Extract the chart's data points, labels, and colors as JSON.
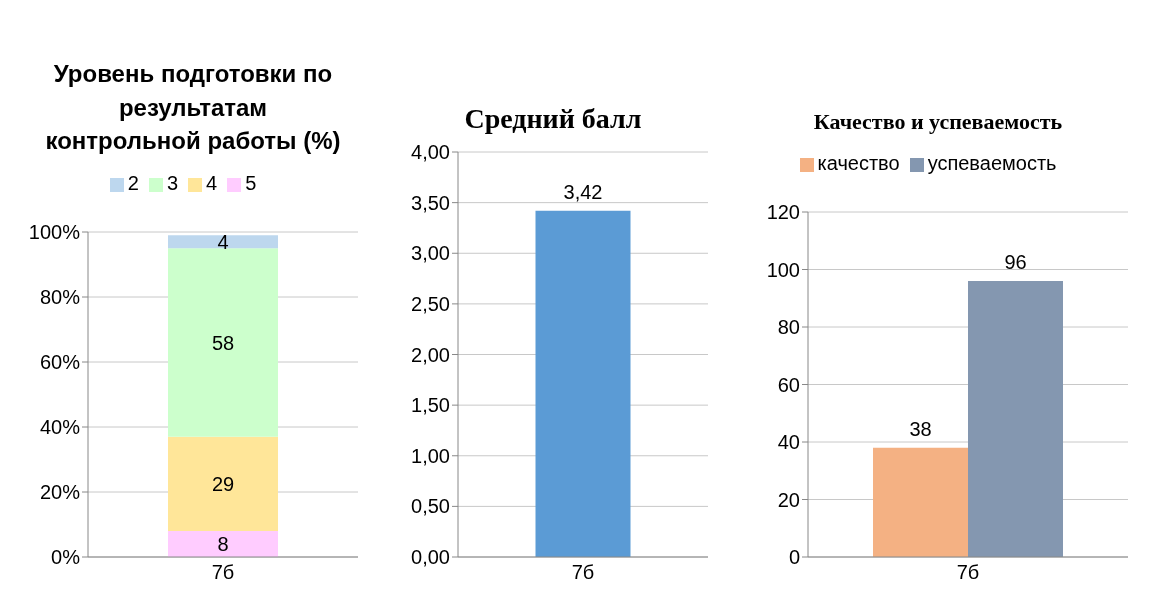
{
  "chart_data": [
    {
      "type": "bar",
      "title": "Уровень подготовки по результатам контрольной работы (%)",
      "categories": [
        "7б"
      ],
      "stacked": true,
      "series": [
        {
          "name": "5",
          "color": "#ffccff",
          "values": [
            8
          ]
        },
        {
          "name": "4",
          "color": "#ffe699",
          "values": [
            29
          ]
        },
        {
          "name": "3",
          "color": "#ccffcc",
          "values": [
            58
          ]
        },
        {
          "name": "2",
          "color": "#bdd7ee",
          "values": [
            4
          ]
        }
      ],
      "ylim": [
        0,
        100
      ],
      "yticks": [
        {
          "value": 0,
          "label": "0%"
        },
        {
          "value": 20,
          "label": "20%"
        },
        {
          "value": 40,
          "label": "40%"
        },
        {
          "value": 60,
          "label": "60%"
        },
        {
          "value": 80,
          "label": "80%"
        },
        {
          "value": 100,
          "label": "100%"
        }
      ],
      "grid": "y",
      "legend": "top",
      "data_labels": true
    },
    {
      "type": "bar",
      "title": "Средний балл",
      "categories": [
        "7б"
      ],
      "series": [
        {
          "color": "#5b9bd5",
          "values": [
            3.42
          ],
          "value_labels": [
            "3,42"
          ]
        }
      ],
      "ylim": [
        0,
        4
      ],
      "yticks": [
        {
          "value": 0,
          "label": "0,00"
        },
        {
          "value": 0.5,
          "label": "0,50"
        },
        {
          "value": 1,
          "label": "1,00"
        },
        {
          "value": 1.5,
          "label": "1,50"
        },
        {
          "value": 2,
          "label": "2,00"
        },
        {
          "value": 2.5,
          "label": "2,50"
        },
        {
          "value": 3,
          "label": "3,00"
        },
        {
          "value": 3.5,
          "label": "3,50"
        },
        {
          "value": 4,
          "label": "4,00"
        }
      ],
      "grid": "y"
    },
    {
      "type": "bar",
      "title": "Качество и успеваемость",
      "categories": [
        "7б"
      ],
      "series": [
        {
          "name": "качество",
          "color": "#f4b183",
          "values": [
            38
          ]
        },
        {
          "name": "успеваемость",
          "color": "#8497b0",
          "values": [
            96
          ]
        }
      ],
      "ylim": [
        0,
        120
      ],
      "yticks": [
        0,
        20,
        40,
        60,
        80,
        100,
        120
      ],
      "grid": "y",
      "legend": "top",
      "data_labels": true
    }
  ]
}
